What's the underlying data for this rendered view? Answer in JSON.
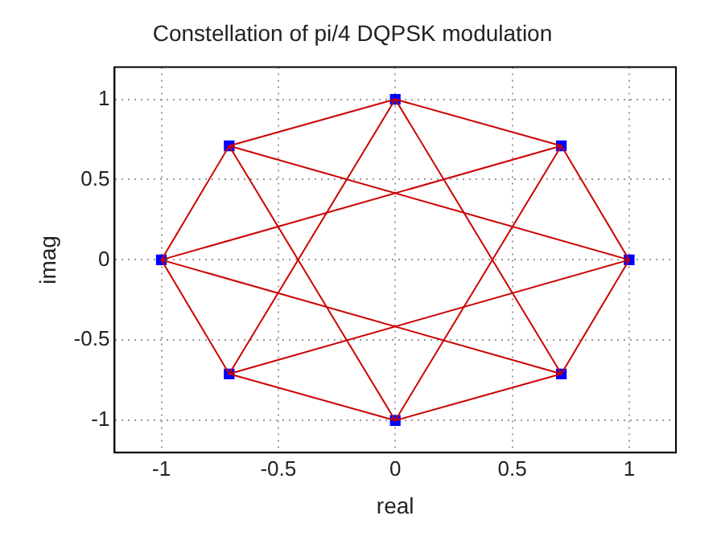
{
  "chart_data": {
    "type": "scatter",
    "title": "Constellation of pi/4 DQPSK modulation",
    "xlabel": "real",
    "ylabel": "imag",
    "xlim": [
      -1.2,
      1.2
    ],
    "xticks": [
      -1,
      -0.5,
      0,
      0.5,
      1
    ],
    "ylim": [
      -1.2,
      1.2
    ],
    "yticks": [
      -1,
      -0.5,
      0,
      0.5,
      1
    ],
    "grid": true,
    "legend": false,
    "series": [
      {
        "type": "line",
        "color": "#cc0000",
        "marker": "none",
        "line_style": "solid",
        "x": [
          -1,
          -0.71,
          0,
          0.71,
          1
        ],
        "values": [
          0,
          0.71,
          1,
          0.71,
          0
        ]
      },
      {
        "type": "line",
        "color": "#cc0000",
        "marker": "none",
        "line_style": "solid",
        "x": [
          -1,
          -0.71,
          0,
          0.71,
          1
        ],
        "values": [
          0,
          -0.71,
          -1,
          -0.71,
          0
        ]
      },
      {
        "type": "line",
        "color": "#cc0000",
        "marker": "none",
        "line_style": "solid",
        "x": [
          -0.71,
          0,
          0.71
        ],
        "values": [
          0.71,
          -1,
          0.71
        ]
      },
      {
        "type": "line",
        "color": "#cc0000",
        "marker": "none",
        "line_style": "solid",
        "x": [
          -0.71,
          0,
          0.71
        ],
        "values": [
          -0.71,
          1,
          -0.71
        ]
      },
      {
        "type": "line",
        "color": "#cc0000",
        "marker": "none",
        "line_style": "solid",
        "x": [
          -1,
          0.71
        ],
        "values": [
          0,
          0.71
        ]
      },
      {
        "type": "line",
        "color": "#cc0000",
        "marker": "none",
        "line_style": "solid",
        "x": [
          -1,
          0.71
        ],
        "values": [
          0,
          -0.71
        ]
      },
      {
        "type": "line",
        "color": "#cc0000",
        "marker": "none",
        "line_style": "solid",
        "x": [
          -0.71,
          1
        ],
        "values": [
          0.71,
          0
        ]
      },
      {
        "type": "line",
        "color": "#cc0000",
        "marker": "none",
        "line_style": "solid",
        "x": [
          -0.71,
          1
        ],
        "values": [
          -0.71,
          0
        ]
      },
      {
        "type": "scatter",
        "color": "#0000ff",
        "marker": "square",
        "x": [
          1,
          0.71,
          0,
          -0.71,
          -1,
          -0.71,
          0,
          0.71
        ],
        "values": [
          0,
          0.71,
          1,
          0.71,
          0,
          -0.71,
          -1,
          -0.71
        ]
      }
    ]
  }
}
